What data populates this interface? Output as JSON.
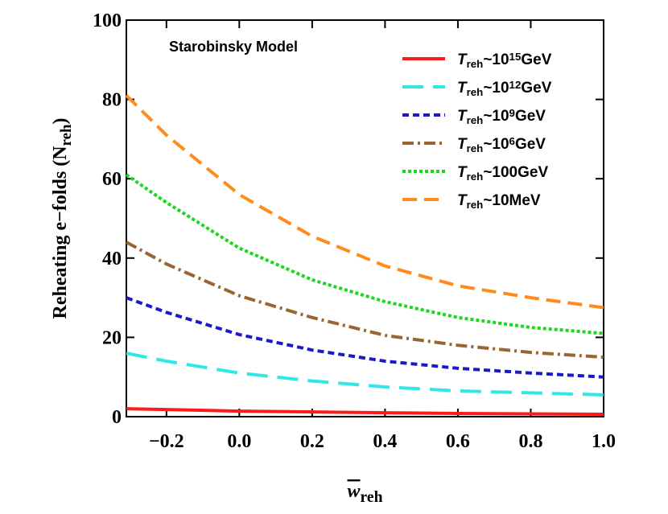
{
  "chart_data": {
    "type": "line",
    "annotation": "Starobinsky Model",
    "x_label": [
      {
        "text": "w",
        "style": "overline"
      },
      {
        "text": "reh",
        "style": "sub"
      }
    ],
    "y_label": [
      {
        "text": "Reheating e−folds (N",
        "style": ""
      },
      {
        "text": "reh",
        "style": "sub"
      },
      {
        "text": ")",
        "style": ""
      }
    ],
    "x": [
      -0.31,
      -0.2,
      0,
      0.2,
      0.4,
      0.6,
      0.8,
      1.0
    ],
    "xlim": [
      -0.31,
      1.0
    ],
    "ylim": [
      0,
      100
    ],
    "xticks": [
      {
        "value": -0.2,
        "label": "−0.2"
      },
      {
        "value": 0,
        "label": "0.0"
      },
      0.2,
      0.4,
      0.6,
      0.8,
      {
        "value": 1.0,
        "label": "1.0"
      }
    ],
    "yticks": [
      0,
      20,
      40,
      60,
      80,
      100
    ],
    "legend": "upper-right",
    "series": [
      {
        "name": [
          {
            "text": "T",
            "style": "italic"
          },
          {
            "text": "reh",
            "style": "sub"
          },
          {
            "text": "~10",
            "style": ""
          },
          {
            "text": "15",
            "style": "sup"
          },
          {
            "text": "GeV",
            "style": ""
          }
        ],
        "color": "#ff1a1a",
        "dash": "solid",
        "values": [
          2,
          1.8,
          1.4,
          1.2,
          1,
          0.8,
          0.7,
          0.6
        ]
      },
      {
        "name": [
          {
            "text": "T",
            "style": "italic"
          },
          {
            "text": "reh",
            "style": "sub"
          },
          {
            "text": "~10",
            "style": ""
          },
          {
            "text": "12",
            "style": "sup"
          },
          {
            "text": "GeV",
            "style": ""
          }
        ],
        "color": "#33e6e6",
        "dash": "long",
        "values": [
          16,
          14,
          11,
          9,
          7.5,
          6.5,
          6,
          5.5
        ]
      },
      {
        "name": [
          {
            "text": "T",
            "style": "italic"
          },
          {
            "text": "reh",
            "style": "sub"
          },
          {
            "text": "~10",
            "style": ""
          },
          {
            "text": "9",
            "style": "sup"
          },
          {
            "text": "GeV",
            "style": ""
          }
        ],
        "color": "#1a1acc",
        "dash": "short",
        "values": [
          30,
          26.3,
          20.7,
          16.8,
          14,
          12.2,
          11,
          10
        ]
      },
      {
        "name": [
          {
            "text": "T",
            "style": "italic"
          },
          {
            "text": "reh",
            "style": "sub"
          },
          {
            "text": "~10",
            "style": ""
          },
          {
            "text": "6",
            "style": "sup"
          },
          {
            "text": "GeV",
            "style": ""
          }
        ],
        "color": "#996633",
        "dash": "dashdot",
        "values": [
          44,
          38.5,
          30.5,
          25,
          20.5,
          18,
          16.2,
          15
        ]
      },
      {
        "name": [
          {
            "text": "T",
            "style": "italic"
          },
          {
            "text": "reh",
            "style": "sub"
          },
          {
            "text": "~100GeV",
            "style": ""
          }
        ],
        "color": "#1ad91a",
        "dash": "dot",
        "values": [
          61,
          54,
          42.5,
          34.5,
          29,
          25,
          22.5,
          21
        ]
      },
      {
        "name": [
          {
            "text": "T",
            "style": "italic"
          },
          {
            "text": "reh",
            "style": "sub"
          },
          {
            "text": "~10MeV",
            "style": ""
          }
        ],
        "color": "#ff8c1a",
        "dash": "medium",
        "values": [
          81,
          71,
          56,
          45.5,
          38,
          33,
          30,
          27.5
        ]
      }
    ]
  }
}
